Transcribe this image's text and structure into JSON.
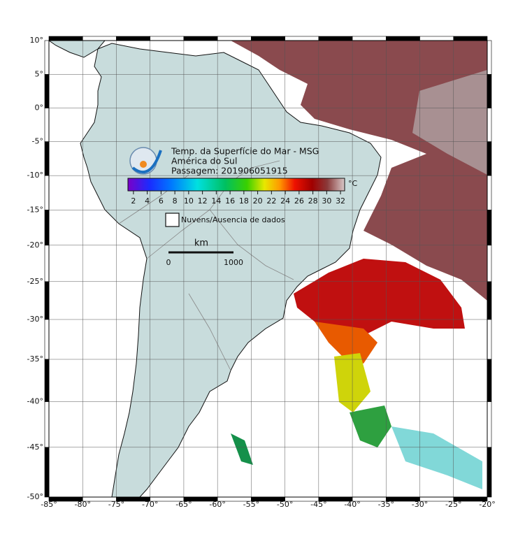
{
  "map": {
    "title_lines": [
      "Temp. da Superfície do Mar - MSG",
      "América do Sul",
      "Passagem: 201906051915"
    ],
    "lon_range": [
      -85,
      -20
    ],
    "lat_range": [
      -50,
      10
    ],
    "lon_ticks": [
      {
        "value": -85,
        "label": "-85°"
      },
      {
        "value": -80,
        "label": "-80°"
      },
      {
        "value": -75,
        "label": "-75°"
      },
      {
        "value": -70,
        "label": "-70°"
      },
      {
        "value": -65,
        "label": "-65°"
      },
      {
        "value": -60,
        "label": "-60°"
      },
      {
        "value": -55,
        "label": "-55°"
      },
      {
        "value": -50,
        "label": "-50°"
      },
      {
        "value": -45,
        "label": "-45°"
      },
      {
        "value": -40,
        "label": "-40°"
      },
      {
        "value": -35,
        "label": "-35°"
      },
      {
        "value": -30,
        "label": "-30°"
      },
      {
        "value": -25,
        "label": "-25°"
      },
      {
        "value": -20,
        "label": "-20°"
      }
    ],
    "lat_ticks": [
      {
        "value": 10,
        "label": "10°"
      },
      {
        "value": 5,
        "label": "5°"
      },
      {
        "value": 0,
        "label": "0°"
      },
      {
        "value": -5,
        "label": "-5°"
      },
      {
        "value": -10,
        "label": "-10°"
      },
      {
        "value": -15,
        "label": "-15°"
      },
      {
        "value": -20,
        "label": "-20°"
      },
      {
        "value": -25,
        "label": "-25°"
      },
      {
        "value": -30,
        "label": "-30°"
      },
      {
        "value": -35,
        "label": "-35°"
      },
      {
        "value": -40,
        "label": "-40°"
      },
      {
        "value": -45,
        "label": "-45°"
      },
      {
        "value": -50,
        "label": "-50°"
      }
    ],
    "colorbar": {
      "unit": "°C",
      "range": [
        1.2,
        32.6
      ],
      "ticks": [
        2,
        4,
        6,
        8,
        10,
        12,
        14,
        16,
        18,
        20,
        22,
        24,
        26,
        28,
        30,
        32
      ]
    },
    "legend": {
      "label": "Nuvens/Ausencia de dados"
    },
    "scale_bar": {
      "unit": "km",
      "ticks": [
        0,
        1000
      ]
    }
  }
}
